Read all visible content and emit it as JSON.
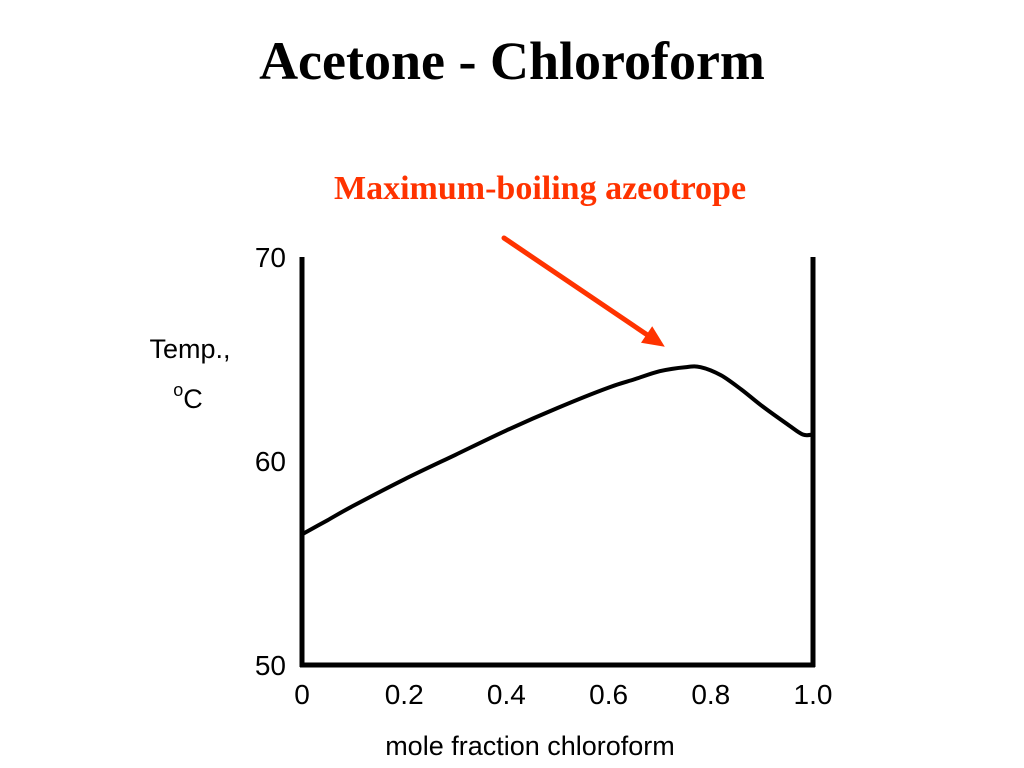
{
  "slide": {
    "title": "Acetone - Chloroform"
  },
  "colors": {
    "annotation": "#ff3300",
    "curve": "#000000"
  },
  "chart_data": {
    "type": "line",
    "title": "",
    "xlabel": "mole fraction chloroform",
    "ylabel_line1": "Temp.,",
    "ylabel_line2_sup": "o",
    "ylabel_line2": "C",
    "xlim": [
      0,
      1.0
    ],
    "ylim": [
      50,
      70
    ],
    "x_ticks": [
      0,
      0.2,
      0.4,
      0.6,
      0.8,
      1.0
    ],
    "x_tick_labels": [
      "0",
      "0.2",
      "0.4",
      "0.6",
      "0.8",
      "1.0"
    ],
    "y_ticks": [
      50,
      60,
      70
    ],
    "y_tick_labels": [
      "50",
      "60",
      "70"
    ],
    "grid": false,
    "series": [
      {
        "x": [
          0,
          0.05,
          0.1,
          0.2,
          0.3,
          0.4,
          0.5,
          0.6,
          0.65,
          0.7,
          0.75,
          0.78,
          0.82,
          0.86,
          0.9,
          0.95,
          0.98,
          1.0
        ],
        "y": [
          56.4,
          57.1,
          57.8,
          59.1,
          60.3,
          61.5,
          62.6,
          63.6,
          64.0,
          64.4,
          64.6,
          64.6,
          64.2,
          63.5,
          62.7,
          61.8,
          61.3,
          61.3
        ]
      }
    ],
    "annotations": [
      {
        "text": "Maximum-boiling azeotrope",
        "arrow_to": [
          0.71,
          65.6
        ]
      }
    ]
  }
}
